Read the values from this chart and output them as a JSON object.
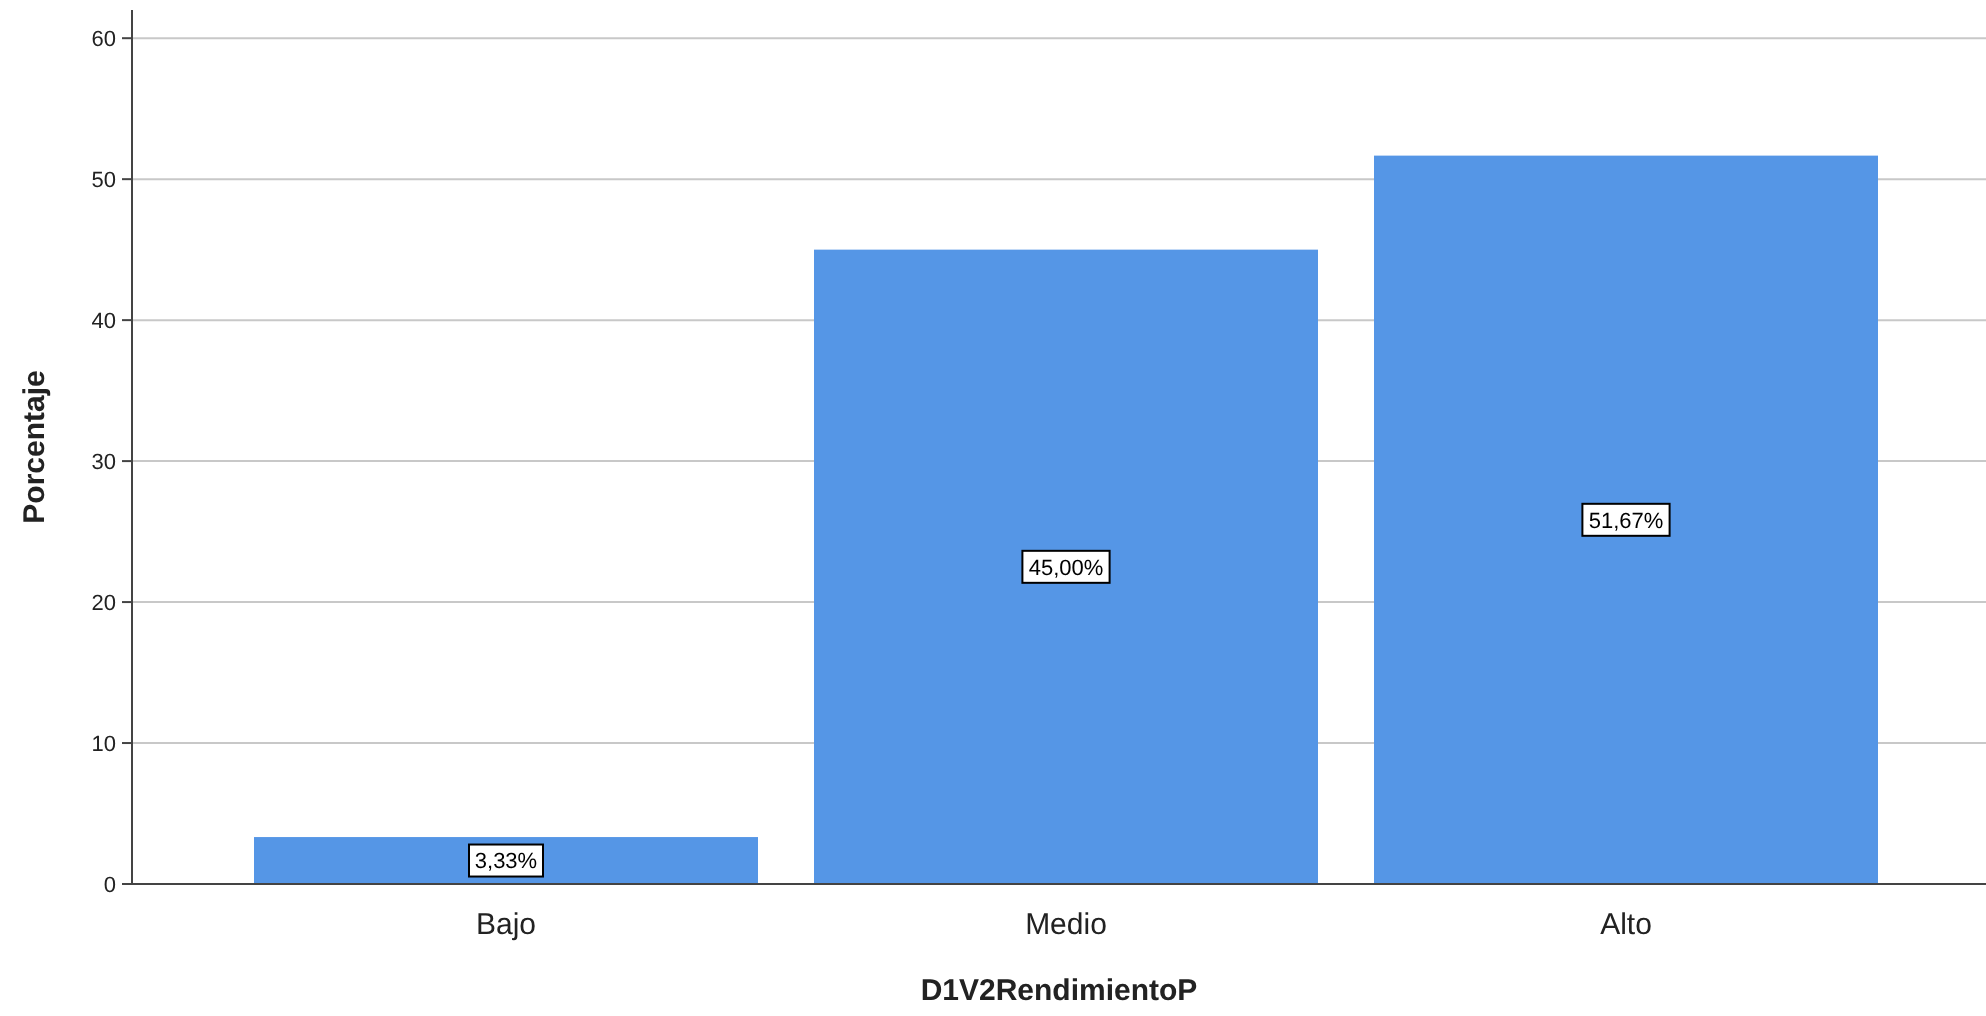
{
  "chart_data": {
    "type": "bar",
    "xlabel": "D1V2RendimientoP",
    "ylabel": "Porcentaje",
    "categories": [
      "Bajo",
      "Medio",
      "Alto"
    ],
    "values": [
      3.33,
      45.0,
      51.67
    ],
    "value_labels": [
      "3,33%",
      "45,00%",
      "51,67%"
    ],
    "color": "#5596e6",
    "ylim": [
      0,
      62
    ],
    "yticks": [
      0,
      10,
      20,
      30,
      40,
      50,
      60
    ],
    "grid": "y"
  }
}
